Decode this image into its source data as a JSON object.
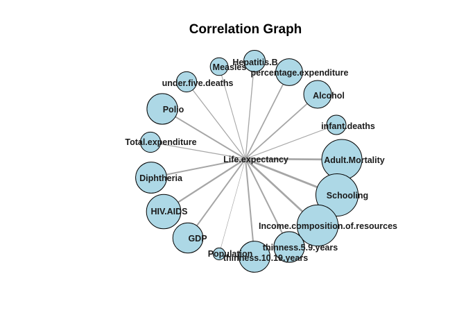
{
  "title": "Correlation Graph",
  "node_fill": "#add8e6",
  "node_stroke": "#000000",
  "edge_color": "#a6a6a6",
  "center": {
    "id": "Life.expectancy",
    "label": "Life.expectancy"
  },
  "nodes": [
    {
      "id": "Hepatitis.B",
      "label": "Hepatitis.B",
      "correlation": 0.25
    },
    {
      "id": "percentage.expenditure",
      "label": "percentage.expenditure",
      "correlation": 0.38
    },
    {
      "id": "Alcohol",
      "label": "Alcohol",
      "correlation": 0.4
    },
    {
      "id": "infant.deaths",
      "label": "infant.deaths",
      "correlation": -0.2
    },
    {
      "id": "Adult.Mortality",
      "label": "Adult.Mortality",
      "correlation": -0.7
    },
    {
      "id": "Schooling",
      "label": "Schooling",
      "correlation": 0.75
    },
    {
      "id": "Income.composition.of.resources",
      "label": "Income.composition.of.resources",
      "correlation": 0.72
    },
    {
      "id": "thinness.5.9.years",
      "label": "thinness.5.9.years",
      "correlation": -0.47
    },
    {
      "id": "thinness.10.19.years",
      "label": "thinness.10.19.years",
      "correlation": -0.48
    },
    {
      "id": "Population",
      "label": "Population",
      "correlation": -0.02
    },
    {
      "id": "GDP",
      "label": "GDP",
      "correlation": 0.46
    },
    {
      "id": "HIV.AIDS",
      "label": "HIV.AIDS",
      "correlation": -0.56
    },
    {
      "id": "Diphtheria",
      "label": "Diphtheria",
      "correlation": 0.48
    },
    {
      "id": "Total.expenditure",
      "label": "Total.expenditure",
      "correlation": 0.22
    },
    {
      "id": "Polio",
      "label": "Polio",
      "correlation": 0.47
    },
    {
      "id": "under.five.deaths",
      "label": "under.five.deaths",
      "correlation": -0.22
    },
    {
      "id": "Measles",
      "label": "Measles",
      "correlation": -0.16
    }
  ]
}
